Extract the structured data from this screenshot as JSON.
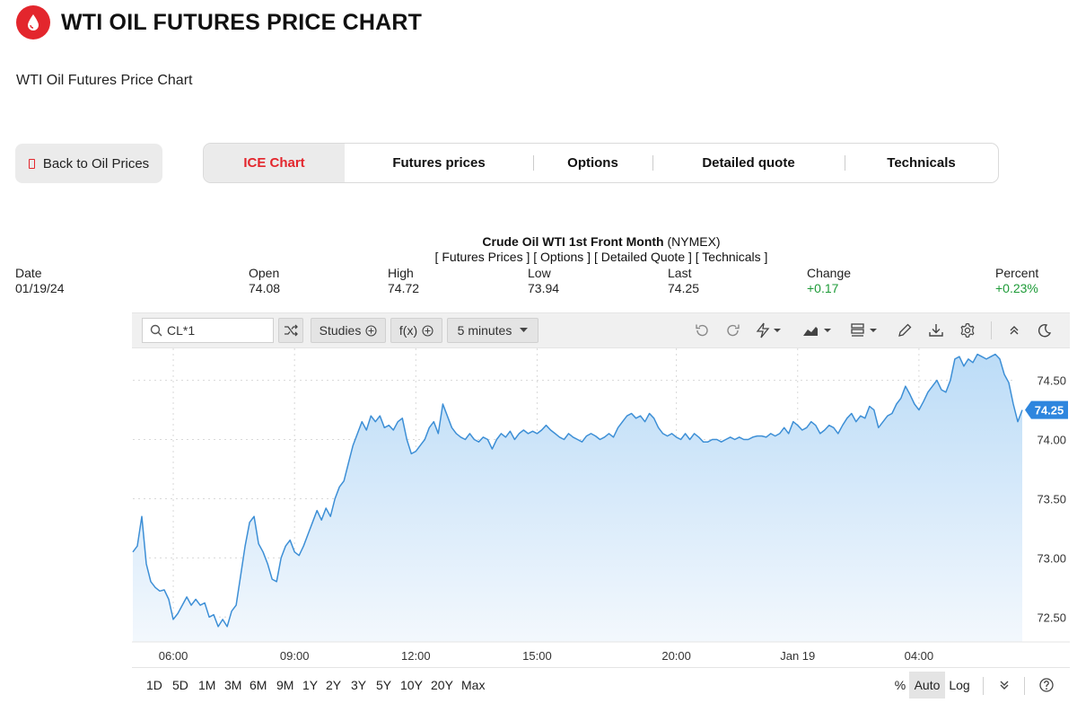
{
  "header": {
    "title": "WTI OIL FUTURES PRICE CHART",
    "logo_icon": "oil-drop-icon",
    "brand_color": "#e3262d"
  },
  "subtitle": "WTI Oil Futures Price Chart",
  "back_button": {
    "label": "Back to Oil Prices"
  },
  "tabs": [
    {
      "label": "ICE Chart",
      "active": true
    },
    {
      "label": "Futures prices",
      "active": false
    },
    {
      "label": "Options",
      "active": false
    },
    {
      "label": "Detailed quote",
      "active": false
    },
    {
      "label": "Technicals",
      "active": false
    }
  ],
  "chart_header": {
    "instrument": "Crude Oil WTI 1st Front Month",
    "exchange": "(NYMEX)",
    "links": "[ Futures Prices ] [ Options ] [ Detailed Quote ] [ Technicals ]"
  },
  "quote": {
    "date_label": "Date",
    "date": "01/19/24",
    "open_label": "Open",
    "open": "74.08",
    "high_label": "High",
    "high": "74.72",
    "low_label": "Low",
    "low": "73.94",
    "last_label": "Last",
    "last": "74.25",
    "change_label": "Change",
    "change": "+0.17",
    "percent_label": "Percent",
    "percent": "+0.23%",
    "positive_color": "#1e9b38"
  },
  "toolbar": {
    "symbol": "CL*1",
    "studies_label": "Studies",
    "fx_label": "f(x)",
    "interval_label": "5 minutes",
    "icons": [
      "search-icon",
      "compare-icon",
      "plus-circle-icon",
      "undo-icon",
      "redo-icon",
      "drawing-tool-icon",
      "chart-type-icon",
      "layout-icon",
      "pencil-icon",
      "download-icon",
      "settings-icon",
      "collapse-icon",
      "dark-mode-icon"
    ]
  },
  "ranges": [
    "1D",
    "5D",
    "1M",
    "3M",
    "6M",
    "9M",
    "1Y",
    "2Y",
    "3Y",
    "5Y",
    "10Y",
    "20Y",
    "Max"
  ],
  "scale_options": [
    {
      "label": "%",
      "active": false
    },
    {
      "label": "Auto",
      "active": true
    },
    {
      "label": "Log",
      "active": false
    }
  ],
  "chart_data": {
    "type": "area",
    "title": "",
    "xlabel": "",
    "ylabel": "",
    "ylim": [
      72.29,
      74.77
    ],
    "xlim": [
      0,
      196
    ],
    "y_ticks": [
      72.5,
      73.0,
      73.5,
      74.0,
      74.5
    ],
    "y_tick_labels": [
      "72.50",
      "73.00",
      "73.50",
      "74.00",
      "74.50"
    ],
    "x_ticks": [
      {
        "x": 9,
        "label": "06:00"
      },
      {
        "x": 36,
        "label": "09:00"
      },
      {
        "x": 63,
        "label": "12:00"
      },
      {
        "x": 90,
        "label": "15:00"
      },
      {
        "x": 121,
        "label": "20:00"
      },
      {
        "x": 148,
        "label": "Jan 19"
      },
      {
        "x": 175,
        "label": "04:00"
      }
    ],
    "grid": true,
    "last_value": 74.25,
    "last_value_label": "74.25",
    "line_color": "#3d8fd6",
    "series": [
      {
        "values": [
          73.05,
          73.1,
          73.35,
          72.95,
          72.8,
          72.75,
          72.72,
          72.73,
          72.65,
          72.48,
          72.53,
          72.6,
          72.67,
          72.6,
          72.65,
          72.6,
          72.62,
          72.5,
          72.52,
          72.42,
          72.48,
          72.42,
          72.55,
          72.6,
          72.85,
          73.1,
          73.3,
          73.35,
          73.12,
          73.05,
          72.95,
          72.82,
          72.8,
          73.0,
          73.1,
          73.15,
          73.05,
          73.02,
          73.1,
          73.2,
          73.3,
          73.4,
          73.32,
          73.42,
          73.35,
          73.5,
          73.6,
          73.65,
          73.8,
          73.95,
          74.05,
          74.15,
          74.08,
          74.2,
          74.15,
          74.2,
          74.1,
          74.12,
          74.08,
          74.15,
          74.18,
          74.0,
          73.88,
          73.9,
          73.95,
          74.0,
          74.1,
          74.15,
          74.05,
          74.3,
          74.2,
          74.1,
          74.05,
          74.02,
          74.0,
          74.05,
          74.0,
          73.98,
          74.02,
          74.0,
          73.92,
          74.0,
          74.05,
          74.02,
          74.07,
          74.0,
          74.05,
          74.08,
          74.05,
          74.07,
          74.05,
          74.08,
          74.12,
          74.08,
          74.05,
          74.02,
          74.0,
          74.05,
          74.02,
          74.0,
          73.98,
          74.03,
          74.05,
          74.03,
          74.0,
          74.02,
          74.05,
          74.02,
          74.1,
          74.15,
          74.2,
          74.22,
          74.18,
          74.2,
          74.15,
          74.22,
          74.18,
          74.1,
          74.05,
          74.03,
          74.05,
          74.02,
          74.0,
          74.05,
          74.0,
          74.05,
          74.02,
          73.98,
          73.98,
          74.0,
          74.0,
          73.98,
          74.0,
          74.02,
          74.0,
          74.02,
          74.0,
          74.0,
          74.02,
          74.03,
          74.03,
          74.02,
          74.05,
          74.03,
          74.05,
          74.1,
          74.05,
          74.15,
          74.12,
          74.08,
          74.1,
          74.15,
          74.12,
          74.05,
          74.08,
          74.12,
          74.1,
          74.05,
          74.12,
          74.18,
          74.22,
          74.15,
          74.2,
          74.18,
          74.28,
          74.25,
          74.1,
          74.15,
          74.2,
          74.22,
          74.3,
          74.35,
          74.45,
          74.38,
          74.3,
          74.25,
          74.32,
          74.4,
          74.45,
          74.5,
          74.42,
          74.4,
          74.5,
          74.68,
          74.7,
          74.62,
          74.68,
          74.65,
          74.72,
          74.7,
          74.68,
          74.7,
          74.72,
          74.68,
          74.55,
          74.48,
          74.3,
          74.15,
          74.25
        ]
      }
    ]
  }
}
